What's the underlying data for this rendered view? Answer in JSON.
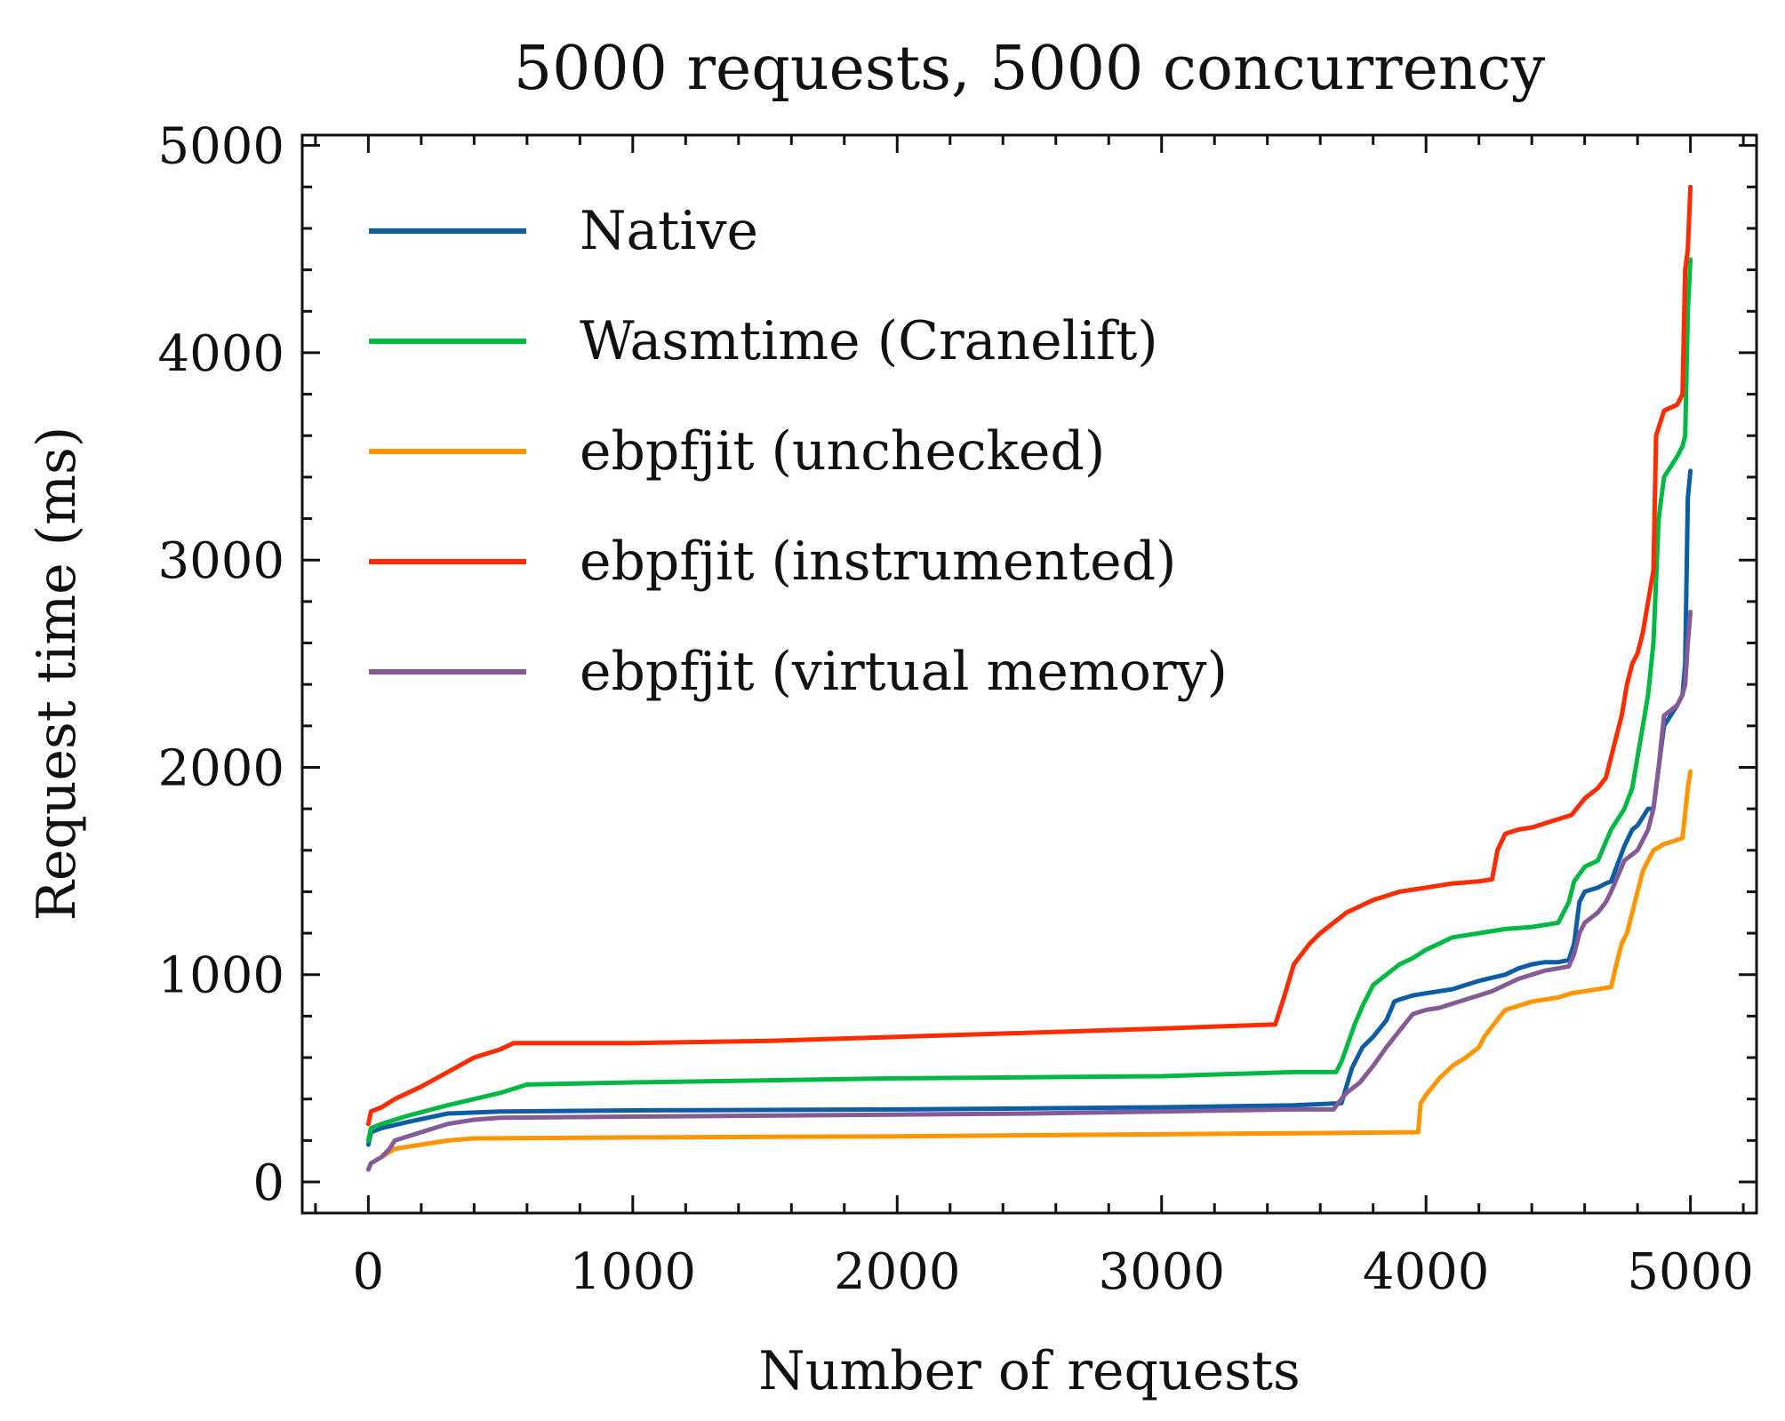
{
  "chart_data": {
    "type": "line",
    "title": "5000 requests, 5000 concurrency",
    "xlabel": "Number of requests",
    "ylabel": "Request time (ms)",
    "xlim": [
      -250,
      5250
    ],
    "ylim": [
      -150,
      5050
    ],
    "xticks": [
      0,
      1000,
      2000,
      3000,
      4000,
      5000
    ],
    "yticks": [
      0,
      1000,
      2000,
      3000,
      4000,
      5000
    ],
    "xtick_labels": [
      "0",
      "1000",
      "2000",
      "3000",
      "4000",
      "5000"
    ],
    "ytick_labels": [
      "0",
      "1000",
      "2000",
      "3000",
      "4000",
      "5000"
    ],
    "grid": false,
    "legend_position": "upper-left",
    "series": [
      {
        "name": "Native",
        "color": "#0C5DA5",
        "x": [
          0,
          10,
          50,
          150,
          300,
          500,
          1000,
          2000,
          3000,
          3500,
          3680,
          3720,
          3760,
          3800,
          3850,
          3880,
          3900,
          3950,
          4000,
          4100,
          4200,
          4300,
          4350,
          4400,
          4450,
          4500,
          4540,
          4560,
          4580,
          4600,
          4650,
          4680,
          4700,
          4750,
          4780,
          4800,
          4820,
          4840,
          4860,
          4880,
          4900,
          4950,
          4970,
          4980,
          4990,
          5000
        ],
        "y": [
          180,
          240,
          260,
          290,
          330,
          340,
          345,
          350,
          360,
          370,
          380,
          550,
          650,
          700,
          780,
          870,
          880,
          900,
          910,
          930,
          970,
          1000,
          1030,
          1050,
          1060,
          1060,
          1070,
          1150,
          1350,
          1400,
          1420,
          1440,
          1450,
          1620,
          1700,
          1720,
          1760,
          1800,
          1800,
          2000,
          2200,
          2300,
          2350,
          2500,
          3300,
          3430
        ]
      },
      {
        "name": "Wasmtime (Cranelift)",
        "color": "#00B945",
        "x": [
          0,
          10,
          50,
          150,
          300,
          500,
          600,
          1000,
          2000,
          3000,
          3500,
          3660,
          3680,
          3700,
          3730,
          3760,
          3800,
          3850,
          3900,
          3950,
          4000,
          4050,
          4100,
          4200,
          4300,
          4400,
          4500,
          4540,
          4560,
          4600,
          4650,
          4700,
          4750,
          4780,
          4800,
          4820,
          4840,
          4860,
          4880,
          4900,
          4950,
          4970,
          4980,
          4990,
          5000
        ],
        "y": [
          200,
          260,
          280,
          320,
          370,
          430,
          470,
          480,
          500,
          510,
          530,
          530,
          580,
          650,
          760,
          850,
          950,
          1000,
          1050,
          1080,
          1120,
          1150,
          1180,
          1200,
          1220,
          1230,
          1250,
          1350,
          1450,
          1520,
          1550,
          1700,
          1800,
          1900,
          2050,
          2200,
          2350,
          2600,
          3200,
          3400,
          3500,
          3550,
          3600,
          4200,
          4450
        ]
      },
      {
        "name": "ebpfjit (unchecked)",
        "color": "#FF9500",
        "x": [
          0,
          10,
          50,
          100,
          200,
          300,
          400,
          1000,
          2000,
          3000,
          3500,
          3970,
          3980,
          4000,
          4050,
          4100,
          4150,
          4200,
          4220,
          4250,
          4280,
          4300,
          4350,
          4400,
          4450,
          4500,
          4550,
          4600,
          4650,
          4700,
          4720,
          4740,
          4760,
          4780,
          4800,
          4820,
          4840,
          4860,
          4900,
          4950,
          4970,
          4990,
          5000
        ],
        "y": [
          60,
          90,
          120,
          160,
          180,
          200,
          210,
          215,
          220,
          230,
          235,
          240,
          380,
          420,
          500,
          560,
          600,
          650,
          700,
          750,
          800,
          830,
          850,
          870,
          880,
          890,
          910,
          920,
          930,
          940,
          1050,
          1150,
          1200,
          1300,
          1400,
          1500,
          1550,
          1600,
          1630,
          1650,
          1660,
          1900,
          1980
        ]
      },
      {
        "name": "ebpfjit (instrumented)",
        "color": "#FF2C00",
        "x": [
          0,
          10,
          50,
          100,
          200,
          300,
          400,
          500,
          550,
          1000,
          1500,
          2000,
          2500,
          3000,
          3430,
          3440,
          3460,
          3500,
          3560,
          3600,
          3650,
          3700,
          3750,
          3800,
          3850,
          3900,
          3950,
          4000,
          4100,
          4200,
          4250,
          4270,
          4300,
          4350,
          4400,
          4450,
          4500,
          4550,
          4600,
          4650,
          4680,
          4700,
          4720,
          4740,
          4760,
          4780,
          4800,
          4820,
          4840,
          4860,
          4870,
          4900,
          4950,
          4970,
          4980,
          4990,
          5000
        ],
        "y": [
          280,
          340,
          360,
          400,
          460,
          530,
          600,
          640,
          670,
          670,
          680,
          700,
          720,
          740,
          760,
          800,
          880,
          1050,
          1150,
          1200,
          1250,
          1300,
          1330,
          1360,
          1380,
          1400,
          1410,
          1420,
          1440,
          1450,
          1460,
          1600,
          1680,
          1700,
          1710,
          1730,
          1750,
          1770,
          1850,
          1900,
          1950,
          2050,
          2150,
          2250,
          2400,
          2500,
          2550,
          2650,
          2800,
          2950,
          3600,
          3720,
          3750,
          3800,
          4400,
          4500,
          4800
        ]
      },
      {
        "name": "ebpfjit (virtual memory)",
        "color": "#845B97",
        "x": [
          0,
          10,
          50,
          80,
          100,
          200,
          300,
          400,
          500,
          1000,
          1500,
          2000,
          2500,
          3000,
          3500,
          3650,
          3680,
          3700,
          3750,
          3800,
          3850,
          3900,
          3950,
          4000,
          4050,
          4100,
          4150,
          4200,
          4250,
          4300,
          4350,
          4400,
          4450,
          4500,
          4540,
          4560,
          4580,
          4600,
          4650,
          4680,
          4700,
          4750,
          4800,
          4820,
          4840,
          4860,
          4880,
          4900,
          4950,
          4970,
          4980,
          4990,
          5000
        ],
        "y": [
          60,
          90,
          120,
          160,
          200,
          240,
          280,
          300,
          310,
          315,
          320,
          325,
          330,
          340,
          350,
          350,
          400,
          430,
          480,
          560,
          650,
          730,
          810,
          830,
          840,
          860,
          880,
          900,
          920,
          950,
          980,
          1000,
          1020,
          1030,
          1040,
          1100,
          1200,
          1250,
          1300,
          1350,
          1400,
          1550,
          1600,
          1650,
          1700,
          1800,
          2000,
          2250,
          2300,
          2350,
          2400,
          2600,
          2750
        ]
      }
    ]
  }
}
